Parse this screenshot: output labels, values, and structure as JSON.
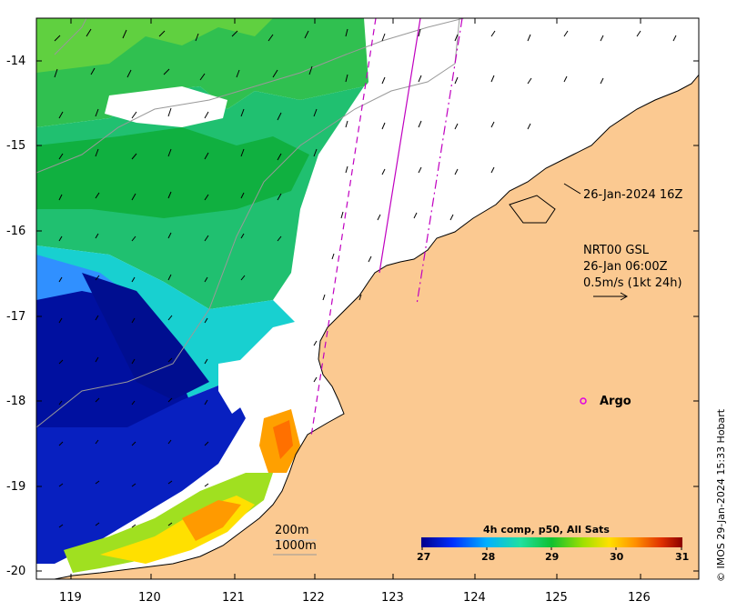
{
  "map": {
    "x_ticks": [
      "119",
      "120",
      "121",
      "122",
      "123",
      "124",
      "125",
      "126"
    ],
    "y_ticks": [
      "-14",
      "-15",
      "-16",
      "-17",
      "-18",
      "-19",
      "-20"
    ],
    "lon_range": [
      118.6,
      126.7
    ],
    "lat_range": [
      -20.15,
      -13.5
    ]
  },
  "annotations": {
    "pass_time": "26-Jan-2024 16Z",
    "current_product": "NRT00 GSL",
    "current_time": "26-Jan 06:00Z",
    "current_scale": "0.5m/s (1kt 24h)",
    "argo_label": "Argo",
    "isobath_1": "200m",
    "isobath_2": "1000m"
  },
  "colorbar": {
    "title": "4h comp, p50, All Sats",
    "ticks": [
      "27",
      "28",
      "29",
      "30",
      "31"
    ],
    "range": [
      27,
      31
    ]
  },
  "credit": "© IMOS 29-Jan-2024 15:33 Hobart",
  "colors": {
    "land": "#fbc991",
    "no_data": "#ffffff",
    "argo_marker": "#e000e0",
    "track": "#c000c0"
  }
}
